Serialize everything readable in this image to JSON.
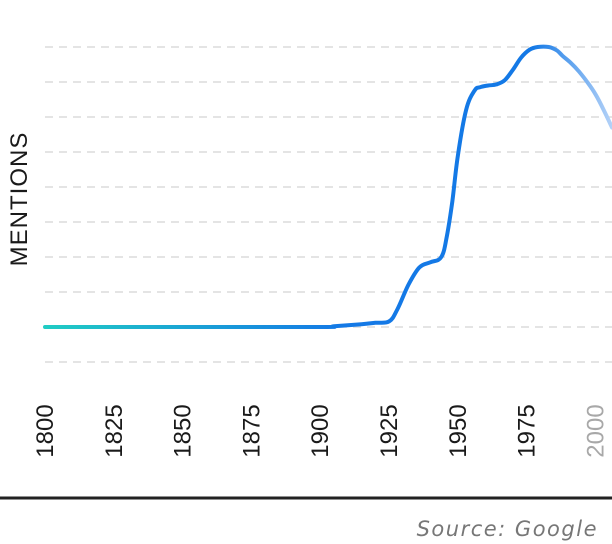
{
  "chart_data": {
    "type": "line",
    "ylabel": "MENTIONS",
    "xlabel": "",
    "source": "Source: Google",
    "x_ticks": [
      "1800",
      "1825",
      "1850",
      "1875",
      "1900",
      "1925",
      "1950",
      "1975",
      "2000"
    ],
    "faded_ticks": [
      "2000"
    ],
    "xlim": [
      1800,
      2006
    ],
    "ylim": [
      -1,
      8
    ],
    "grid": true,
    "legend": "none",
    "series": [
      {
        "x": [
          1800,
          1850,
          1900,
          1905,
          1915,
          1920,
          1925,
          1928,
          1932,
          1936,
          1940,
          1944,
          1946,
          1948,
          1950,
          1953,
          1956,
          1958,
          1961,
          1964,
          1967,
          1970,
          1973,
          1976,
          1979,
          1983,
          1986,
          1988,
          1991,
          1994,
          1997,
          2000,
          2003,
          2006
        ],
        "y": [
          0,
          0,
          0,
          0.02,
          0.08,
          0.12,
          0.16,
          0.5,
          1.2,
          1.7,
          1.85,
          2.0,
          2.6,
          3.6,
          4.9,
          6.2,
          6.75,
          6.85,
          6.9,
          6.93,
          7.05,
          7.35,
          7.7,
          7.92,
          8.0,
          8.0,
          7.9,
          7.75,
          7.55,
          7.3,
          7.0,
          6.65,
          6.2,
          5.7
        ]
      }
    ],
    "colors": {
      "line_start": "#20ccc4",
      "line_mid": "#1479e6",
      "line_end_fade": "#b4d2f8",
      "grid": "#dcdcdc",
      "tick_text": "#1a1a1a",
      "tick_text_faded": "#a8a8a8",
      "axis_line": "#222222",
      "source_text": "#777777"
    }
  }
}
